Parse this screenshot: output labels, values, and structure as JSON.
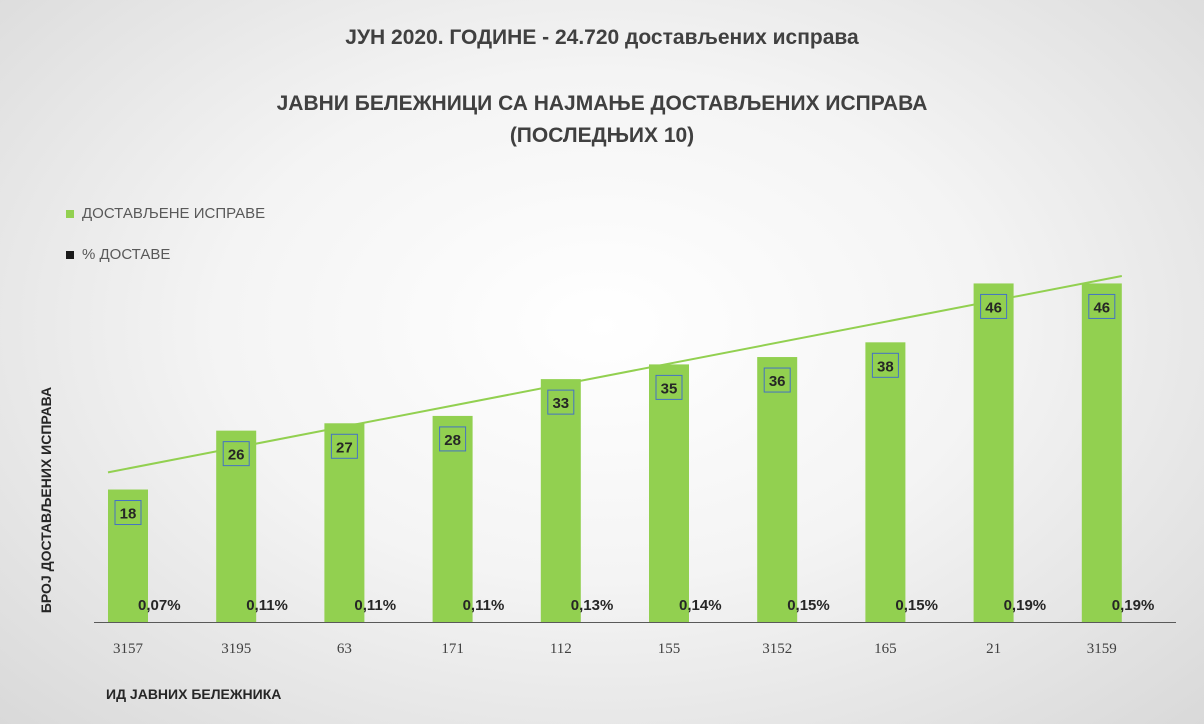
{
  "titles": {
    "main": "ЈУН 2020. ГОДИНЕ - 24.720 достављених исправа",
    "sub1": "ЈАВНИ БЕЛЕЖНИЦИ СА НАЈМАЊЕ ДОСТАВЉЕНИХ ИСПРАВА",
    "sub2": "(ПОСЛЕДЊИХ 10)"
  },
  "colors": {
    "bar": "#92d050",
    "trend": "#92d050",
    "pct_swatch": "#1a1a1a",
    "label_border": "#4472c4"
  },
  "chart_data": {
    "type": "bar",
    "categories": [
      "3157",
      "3195",
      "63",
      "171",
      "112",
      "155",
      "3152",
      "165",
      "21",
      "3159"
    ],
    "series": [
      {
        "name": "ДОСТАВЉЕНЕ ИСПРАВЕ",
        "values": [
          18,
          26,
          27,
          28,
          33,
          35,
          36,
          38,
          46,
          46
        ]
      },
      {
        "name": "% ДОСТАВЕ",
        "values": [
          0.07,
          0.11,
          0.11,
          0.11,
          0.13,
          0.14,
          0.15,
          0.15,
          0.19,
          0.19
        ],
        "labels": [
          "0,07%",
          "0,11%",
          "0,11%",
          "0,11%",
          "0,13%",
          "0,14%",
          "0,15%",
          "0,15%",
          "0,19%",
          "0,19%"
        ]
      }
    ],
    "trendline": {
      "type": "linear",
      "series": "ДОСТАВЉЕНЕ ИСПРАВЕ"
    },
    "xlabel": "ИД ЈАВНИХ БЕЛЕЖНИКА",
    "ylabel": "БРОЈ ДОСТАВЉЕНИХ ИСПРАВА",
    "legend": "top-left",
    "grid": false
  }
}
